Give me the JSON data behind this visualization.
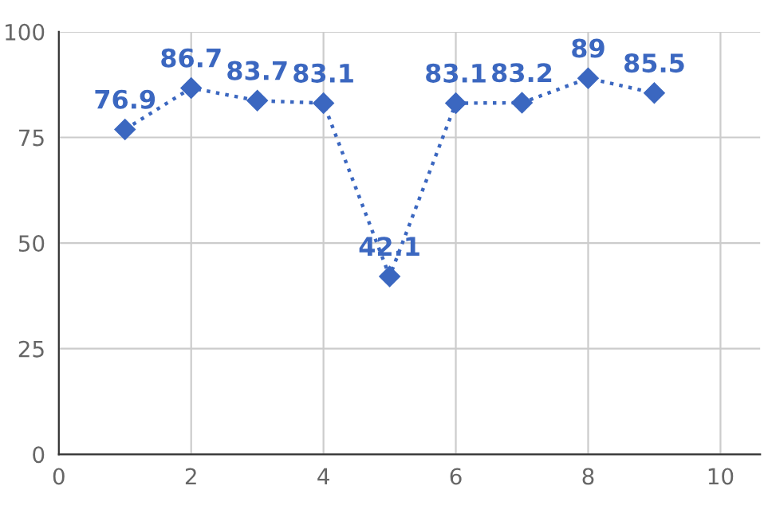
{
  "chart_data": {
    "type": "line",
    "x": [
      1,
      2,
      3,
      4,
      5,
      6,
      7,
      8,
      9
    ],
    "series": [
      {
        "color": "#3b67c0",
        "values": [
          76.9,
          86.7,
          83.7,
          83.1,
          42.1,
          83.1,
          83.2,
          89,
          85.5
        ]
      }
    ],
    "xlim": [
      0,
      10.6
    ],
    "xticks": [
      0,
      2,
      4,
      6,
      8,
      10
    ],
    "ylim": [
      0,
      100
    ],
    "yticks": [
      0,
      25,
      50,
      75,
      100
    ],
    "grid": true,
    "marker": "diamond",
    "line_style": "dotted",
    "data_labels": true
  }
}
